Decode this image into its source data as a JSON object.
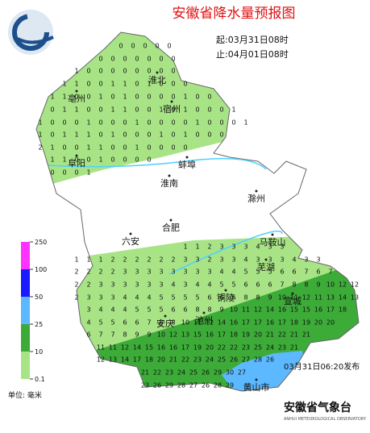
{
  "header": {
    "title": "安徽省降水量预报图",
    "start": "起:03月31日08时",
    "end": "止:04月01日08时"
  },
  "cities": [
    "淮北",
    "亳州",
    "宿州",
    "阜阳",
    "蚌埠",
    "淮南",
    "滁州",
    "合肥",
    "六安",
    "马鞍山",
    "芜湖",
    "铜陵",
    "宣城",
    "安庆",
    "池州",
    "黄山市"
  ],
  "grid_rows": [
    [
      0,
      0,
      0,
      0,
      0
    ],
    [
      0,
      0,
      0,
      0,
      0,
      0,
      0
    ],
    [
      1,
      0,
      0,
      0,
      0,
      0,
      0,
      0,
      0
    ],
    [
      1,
      1,
      0,
      0,
      1,
      1,
      0,
      1,
      0,
      0,
      0
    ],
    [
      1,
      1,
      0,
      0,
      1,
      0,
      1,
      0,
      0,
      0,
      0,
      1,
      0,
      0
    ],
    [
      0,
      1,
      1,
      0,
      0,
      1,
      1,
      0,
      0,
      1,
      0,
      1,
      0,
      0,
      0,
      1
    ],
    [
      1,
      0,
      0,
      0,
      1,
      0,
      0,
      0,
      1,
      0,
      0,
      0,
      0,
      1,
      0,
      0,
      0,
      1
    ],
    [
      1,
      0,
      1,
      1,
      1,
      0,
      1,
      0,
      0,
      0,
      1,
      0,
      1,
      0,
      0,
      0
    ],
    [
      2,
      1,
      0,
      0,
      1,
      1,
      0,
      0,
      1,
      0,
      0,
      0,
      0
    ],
    [
      1,
      1,
      0,
      0,
      1,
      0,
      0,
      0,
      0
    ],
    [
      0,
      0,
      0,
      1
    ],
    [
      1,
      1,
      2,
      3,
      3,
      3,
      4,
      3,
      3
    ],
    [
      1,
      1,
      1,
      2,
      2,
      2,
      2,
      2,
      2,
      3,
      3,
      2,
      3,
      3,
      4,
      3,
      3,
      3,
      4,
      3,
      3
    ],
    [
      2,
      2,
      2,
      2,
      3,
      3,
      3,
      3,
      3,
      3,
      3,
      3,
      4,
      4,
      5,
      5,
      5,
      6,
      6,
      7,
      6,
      7
    ],
    [
      2,
      2,
      3,
      3,
      3,
      3,
      3,
      3,
      4,
      3,
      4,
      4,
      5,
      5,
      6,
      6,
      6,
      7,
      8,
      8,
      9,
      10,
      12,
      12
    ],
    [
      2,
      3,
      3,
      3,
      4,
      4,
      4,
      5,
      5,
      5,
      5,
      6,
      6,
      6,
      8,
      8,
      9,
      10,
      11,
      12,
      11,
      13,
      14,
      13
    ],
    [
      3,
      4,
      4,
      4,
      5,
      5,
      5,
      6,
      6,
      8,
      8,
      9,
      10,
      11,
      12,
      14,
      16,
      15,
      15,
      16,
      17,
      18
    ],
    [
      4,
      5,
      5,
      6,
      6,
      7,
      8,
      8,
      10,
      11,
      12,
      14,
      16,
      17,
      17,
      16,
      17,
      18,
      19,
      20,
      20
    ],
    [
      6,
      7,
      7,
      8,
      9,
      9,
      10,
      12,
      13,
      15,
      16,
      17,
      18,
      19,
      20,
      21,
      22,
      21,
      21
    ],
    [
      11,
      11,
      12,
      14,
      15,
      16,
      16,
      17,
      19,
      20,
      22,
      22,
      23,
      25,
      24,
      23,
      21
    ],
    [
      12,
      13,
      14,
      17,
      18,
      20,
      21,
      22,
      23,
      24,
      25,
      26,
      27,
      28,
      26
    ],
    [
      21,
      22,
      23,
      24,
      25,
      26,
      29,
      30,
      27
    ],
    [
      23,
      26,
      29,
      28,
      27,
      26,
      28,
      29
    ]
  ],
  "legend": {
    "ticks": [
      250,
      100,
      50,
      25,
      10,
      0.1
    ],
    "colors": [
      "#ff33ff",
      "#1a1aff",
      "#5cb8ff",
      "#3cab38",
      "#a8e486"
    ],
    "unit": "单位: 毫米"
  },
  "footer": {
    "issued": "03月31日06:20发布",
    "agency": "安徽省气象台",
    "agency_en": "ANHUI METEOROLOGICAL OBSERVATORY"
  }
}
